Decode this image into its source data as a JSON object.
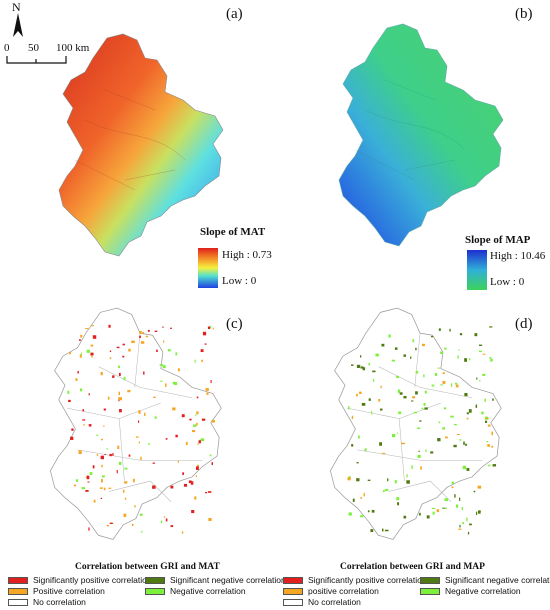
{
  "panels": {
    "a": {
      "label": "(a)",
      "legend_title": "Slope of MAT",
      "high": "High : 0.73",
      "low": "Low : 0"
    },
    "b": {
      "label": "(b)",
      "legend_title": "Slope of MAP",
      "high": "High : 10.46",
      "low": "Low : 0"
    },
    "c": {
      "label": "(c)",
      "legend_title": "Correlation between GRI and MAT",
      "items": [
        "Significantly positive correlation",
        "Significant negative correlation",
        "Positive correlation",
        "Negative correlation",
        "No correlation"
      ]
    },
    "d": {
      "label": "(d)",
      "legend_title": "Correlation between GRI and MAP",
      "items": [
        "Significantly positive correlation",
        "Significant negative correlation",
        "positive correlation",
        "Negative correlation",
        "No correlation"
      ]
    }
  },
  "north_arrow": "N",
  "scale_bar": {
    "t0": "0",
    "t1": "50",
    "t2": "100 km"
  },
  "colors": {
    "sig_pos": "#e21f1f",
    "pos": "#f5a623",
    "sig_neg": "#4f7a12",
    "neg": "#7cf03a",
    "none": "#ffffff"
  }
}
